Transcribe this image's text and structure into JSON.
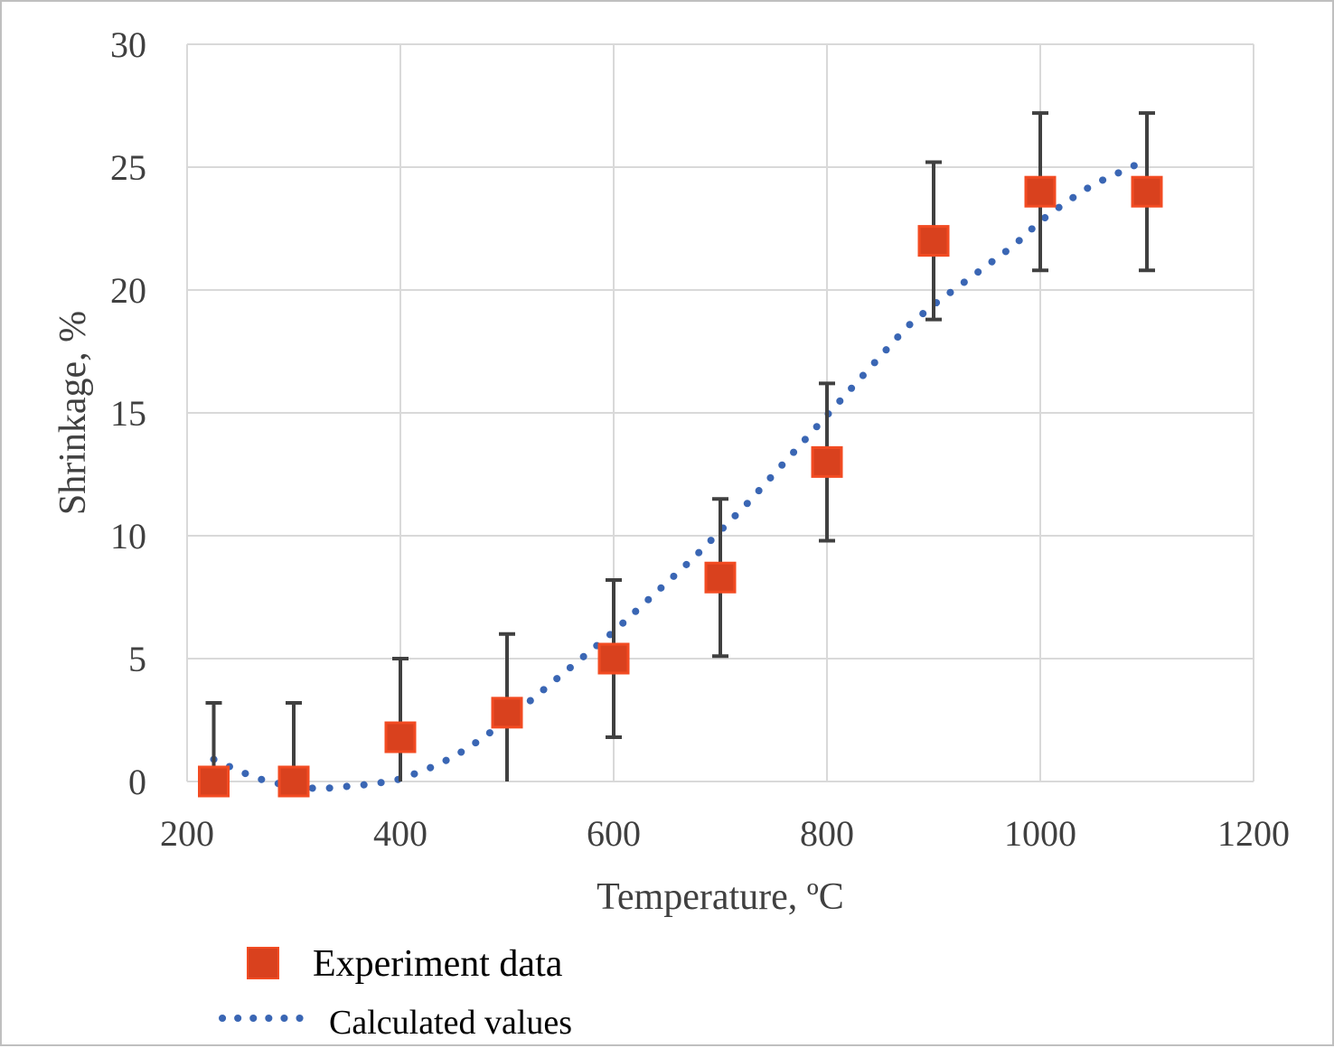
{
  "chart_data": {
    "type": "scatter",
    "xlabel": "Temperature, ºC",
    "ylabel": "Shrinkage, %",
    "xlim": [
      200,
      1200
    ],
    "ylim": [
      0,
      30
    ],
    "x_ticks": [
      "200",
      "400",
      "600",
      "800",
      "1000",
      "1200"
    ],
    "y_ticks": [
      "0",
      "5",
      "10",
      "15",
      "20",
      "25",
      "30"
    ],
    "grid": true,
    "legend_placement": "bottom",
    "series": [
      {
        "name": "Experiment data",
        "kind": "markers",
        "marker": "square",
        "color": "#d9411e",
        "x": [
          225,
          300,
          400,
          500,
          600,
          700,
          800,
          900,
          1000,
          1100
        ],
        "y": [
          0,
          0,
          1.8,
          2.8,
          5.0,
          8.3,
          13.0,
          22.0,
          24.0,
          24.0
        ],
        "error": [
          3.2,
          3.2,
          3.2,
          3.2,
          3.2,
          3.2,
          3.2,
          3.2,
          3.2,
          3.2
        ],
        "error_color": "#404040"
      },
      {
        "name": "Calculated values",
        "kind": "line",
        "style": "dotted",
        "color": "#3a66b4",
        "x": [
          225,
          250,
          275,
          300,
          325,
          350,
          375,
          400,
          425,
          450,
          475,
          500,
          525,
          550,
          575,
          600,
          625,
          650,
          675,
          700,
          725,
          750,
          775,
          800,
          825,
          850,
          875,
          900,
          925,
          950,
          975,
          1000,
          1025,
          1050,
          1075,
          1100
        ],
        "y": [
          0.9,
          0.4,
          0.0,
          -0.2,
          -0.3,
          -0.2,
          -0.1,
          0.1,
          0.5,
          1.0,
          1.7,
          2.5,
          3.4,
          4.3,
          5.2,
          6.1,
          7.1,
          8.1,
          9.1,
          10.2,
          11.3,
          12.5,
          13.7,
          14.9,
          16.1,
          17.3,
          18.5,
          19.4,
          20.2,
          21.0,
          21.8,
          22.8,
          23.6,
          24.3,
          24.8,
          25.3
        ]
      }
    ]
  },
  "colors": {
    "marker_fill": "#d9411e",
    "marker_edge": "#f24b22",
    "dots": "#3a66b4",
    "grid": "#d9d9d9",
    "tick_text": "#404040"
  }
}
